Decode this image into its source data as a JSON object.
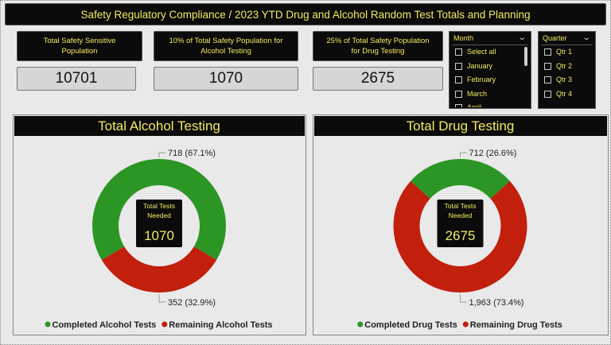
{
  "header": {
    "title": "Safety Regulatory Compliance / 2023 YTD Drug and Alcohol Random Test Totals and Planning"
  },
  "cards": [
    {
      "label": "Total Safety Sensitive Population",
      "value": 10701
    },
    {
      "label": "10% of Total Safety Population for Alcohol Testing",
      "value": 1070
    },
    {
      "label": "25% of Total Safety Population for Drug Testing",
      "value": 2675
    }
  ],
  "slicers": [
    {
      "title": "Month",
      "items": [
        "Select all",
        "January",
        "February",
        "March",
        "April"
      ]
    },
    {
      "title": "Quarter",
      "items": [
        "Qtr 1",
        "Qtr 2",
        "Qtr 3",
        "Qtr 4"
      ]
    }
  ],
  "chart_data": [
    {
      "type": "donut",
      "title": "Total Alcohol Testing",
      "categories": [
        "Completed Alcohol Tests",
        "Remaining Alcohol Tests"
      ],
      "values": [
        718,
        352
      ],
      "value_labels": [
        "718 (67.1%)",
        "352 (32.9%)"
      ],
      "colors": [
        "#2b9624",
        "#c21f0d"
      ],
      "center_label": "Total Tests Needed",
      "center_value": 1070
    },
    {
      "type": "donut",
      "title": "Total Drug Testing",
      "categories": [
        "Completed Drug Tests",
        "Remaining Drug Tests"
      ],
      "values": [
        712,
        1963
      ],
      "value_labels": [
        "712 (26.6%)",
        "1,963 (73.4%)"
      ],
      "colors": [
        "#2b9624",
        "#c21f0d"
      ],
      "center_label": "Total Tests Needed",
      "center_value": 2675
    }
  ]
}
